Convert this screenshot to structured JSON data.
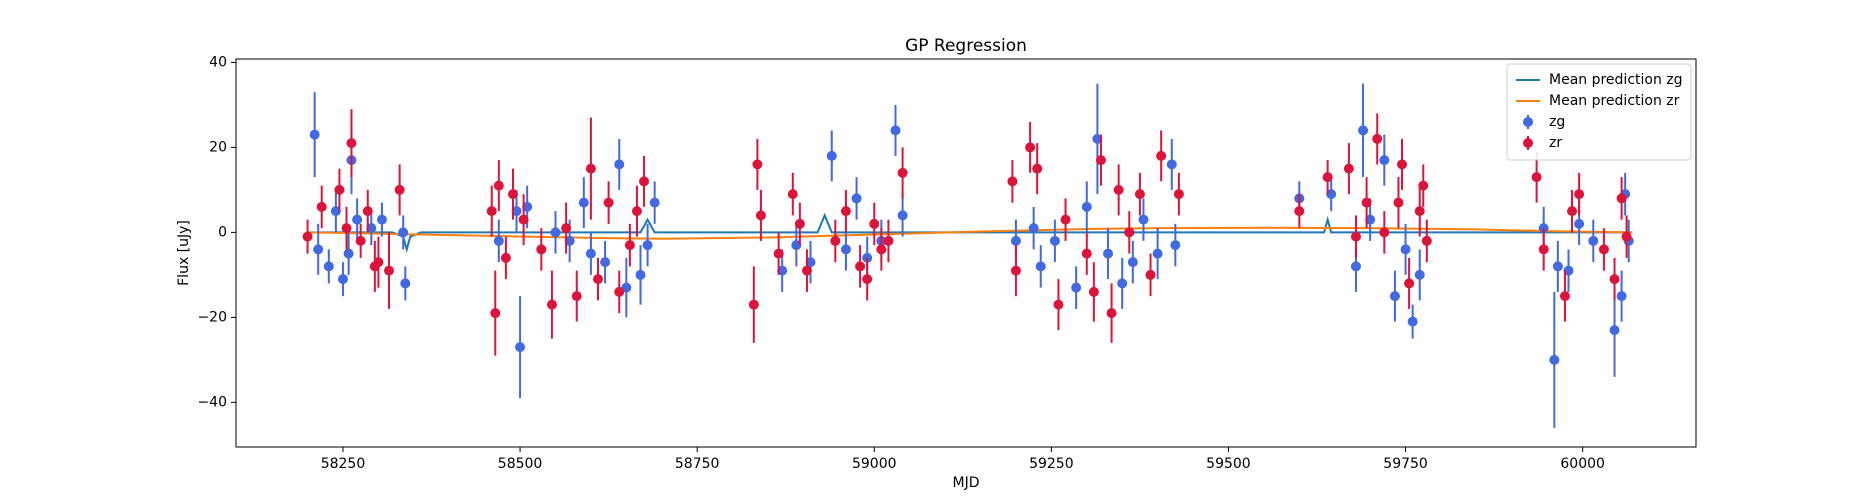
{
  "chart_data": {
    "type": "scatter",
    "title": "GP Regression",
    "x_label": "MJD",
    "y_label": "Flux [uJy]",
    "xlim": [
      58099,
      60160
    ],
    "ylim": [
      -50.5,
      40.8
    ],
    "xticks": [
      58250,
      58500,
      58750,
      59000,
      59250,
      59500,
      59750,
      60000
    ],
    "yticks": [
      {
        "value": -40,
        "label": "−40"
      },
      {
        "value": -20,
        "label": "−20"
      },
      0,
      20,
      40
    ],
    "legend": "upper right",
    "series": [
      {
        "name": "Mean prediction zg",
        "color": "#1f77b4",
        "type": "line",
        "x": [
          58200,
          58320,
          58335,
          58340,
          58345,
          58360,
          58670,
          58680,
          58690,
          58920,
          58930,
          58940,
          59200,
          59600,
          59635,
          59640,
          59645,
          59660,
          60070
        ],
        "values": [
          0,
          0,
          -1,
          -4,
          -1,
          0,
          0,
          3,
          0,
          0,
          4,
          0,
          0,
          0,
          0,
          3,
          0,
          0,
          0
        ]
      },
      {
        "name": "Mean prediction zr",
        "color": "#ff7f0e",
        "type": "line",
        "x": [
          58200,
          58300,
          58450,
          58600,
          58700,
          58850,
          59000,
          59150,
          59300,
          59400,
          59550,
          59700,
          59850,
          59950,
          60070
        ],
        "values": [
          0,
          -0.3,
          -0.8,
          -1.3,
          -1.5,
          -1.2,
          -0.5,
          0.2,
          0.8,
          1,
          1.1,
          1,
          0.7,
          0.3,
          0
        ]
      },
      {
        "name": "zg",
        "color": "#4169e1",
        "type": "errorbar",
        "x": [
          58210,
          58215,
          58230,
          58240,
          58250,
          58262,
          58258,
          58270,
          58290,
          58305,
          58335,
          58338,
          58470,
          58495,
          58500,
          58510,
          58550,
          58570,
          58590,
          58600,
          58620,
          58640,
          58650,
          58670,
          58680,
          58690,
          58870,
          58890,
          58910,
          58940,
          58960,
          58975,
          58990,
          59010,
          59030,
          59040,
          59200,
          59225,
          59235,
          59255,
          59285,
          59300,
          59315,
          59330,
          59350,
          59365,
          59380,
          59400,
          59420,
          59425,
          59600,
          59645,
          59680,
          59690,
          59700,
          59720,
          59735,
          59750,
          59760,
          59770,
          59945,
          59960,
          59965,
          59980,
          59995,
          60015,
          60045,
          60055,
          60060,
          60065
        ],
        "values": [
          23,
          -4,
          -8,
          5,
          -11,
          17,
          -5,
          3,
          1,
          3,
          0,
          -12,
          -2,
          5,
          -27,
          6,
          0,
          -2,
          7,
          -5,
          -7,
          16,
          -13,
          -10,
          -3,
          7,
          -9,
          -3,
          -7,
          18,
          -4,
          8,
          -6,
          -2,
          24,
          4,
          -2,
          1,
          -8,
          -2,
          -13,
          6,
          22,
          -5,
          -12,
          -7,
          3,
          -5,
          16,
          -3,
          8,
          9,
          -8,
          24,
          3,
          17,
          -15,
          -4,
          -21,
          -10,
          1,
          -30,
          -8,
          -9,
          2,
          -2,
          -23,
          -15,
          9,
          -2
        ],
        "errors": [
          10,
          6,
          4,
          5,
          4,
          8,
          5,
          5,
          4,
          4,
          4,
          4,
          5,
          5,
          12,
          5,
          5,
          5,
          6,
          5,
          5,
          6,
          7,
          7,
          5,
          5,
          5,
          5,
          5,
          6,
          5,
          5,
          5,
          5,
          6,
          5,
          5,
          5,
          5,
          5,
          5,
          6,
          13,
          6,
          6,
          5,
          5,
          6,
          6,
          5,
          4,
          4,
          6,
          11,
          5,
          6,
          6,
          6,
          4,
          6,
          5,
          16,
          6,
          5,
          5,
          5,
          11,
          6,
          5,
          5
        ]
      },
      {
        "name": "zr",
        "color": "#dc143c",
        "type": "errorbar",
        "x": [
          58200,
          58220,
          58245,
          58255,
          58262,
          58275,
          58285,
          58295,
          58300,
          58315,
          58330,
          58460,
          58465,
          58470,
          58480,
          58490,
          58505,
          58530,
          58545,
          58565,
          58580,
          58600,
          58610,
          58625,
          58640,
          58655,
          58665,
          58675,
          58830,
          58835,
          58840,
          58865,
          58885,
          58895,
          58905,
          58945,
          58960,
          58980,
          58990,
          59000,
          59010,
          59020,
          59040,
          59195,
          59200,
          59220,
          59230,
          59260,
          59270,
          59300,
          59310,
          59320,
          59335,
          59345,
          59360,
          59375,
          59390,
          59405,
          59430,
          59600,
          59640,
          59670,
          59680,
          59695,
          59710,
          59720,
          59740,
          59745,
          59755,
          59770,
          59775,
          59780,
          59935,
          59945,
          59975,
          59985,
          59995,
          60030,
          60045,
          60055,
          60062
        ],
        "values": [
          -1,
          6,
          10,
          1,
          21,
          -2,
          5,
          -8,
          -7,
          -9,
          10,
          5,
          -19,
          11,
          -6,
          9,
          3,
          -4,
          -17,
          1,
          -15,
          15,
          -11,
          7,
          -14,
          -3,
          5,
          12,
          -17,
          16,
          4,
          -5,
          9,
          2,
          -9,
          -2,
          5,
          -8,
          -11,
          2,
          -4,
          -2,
          14,
          12,
          -9,
          20,
          15,
          -17,
          3,
          -5,
          -14,
          17,
          -19,
          10,
          0,
          9,
          -10,
          18,
          9,
          5,
          13,
          15,
          -1,
          7,
          22,
          0,
          7,
          16,
          -12,
          5,
          11,
          -2,
          13,
          -4,
          -15,
          5,
          9,
          -4,
          -11,
          8,
          -1
        ],
        "errors": [
          4,
          5,
          5,
          5,
          8,
          4,
          5,
          6,
          6,
          9,
          6,
          6,
          10,
          6,
          5,
          6,
          6,
          5,
          8,
          6,
          6,
          12,
          5,
          5,
          5,
          5,
          6,
          6,
          9,
          6,
          6,
          5,
          5,
          5,
          5,
          5,
          5,
          5,
          5,
          5,
          5,
          5,
          6,
          5,
          6,
          6,
          6,
          6,
          5,
          5,
          7,
          6,
          7,
          6,
          5,
          5,
          5,
          6,
          5,
          4,
          4,
          6,
          5,
          6,
          6,
          5,
          6,
          6,
          6,
          6,
          5,
          5,
          6,
          5,
          6,
          5,
          5,
          5,
          5,
          5,
          5
        ]
      }
    ]
  }
}
